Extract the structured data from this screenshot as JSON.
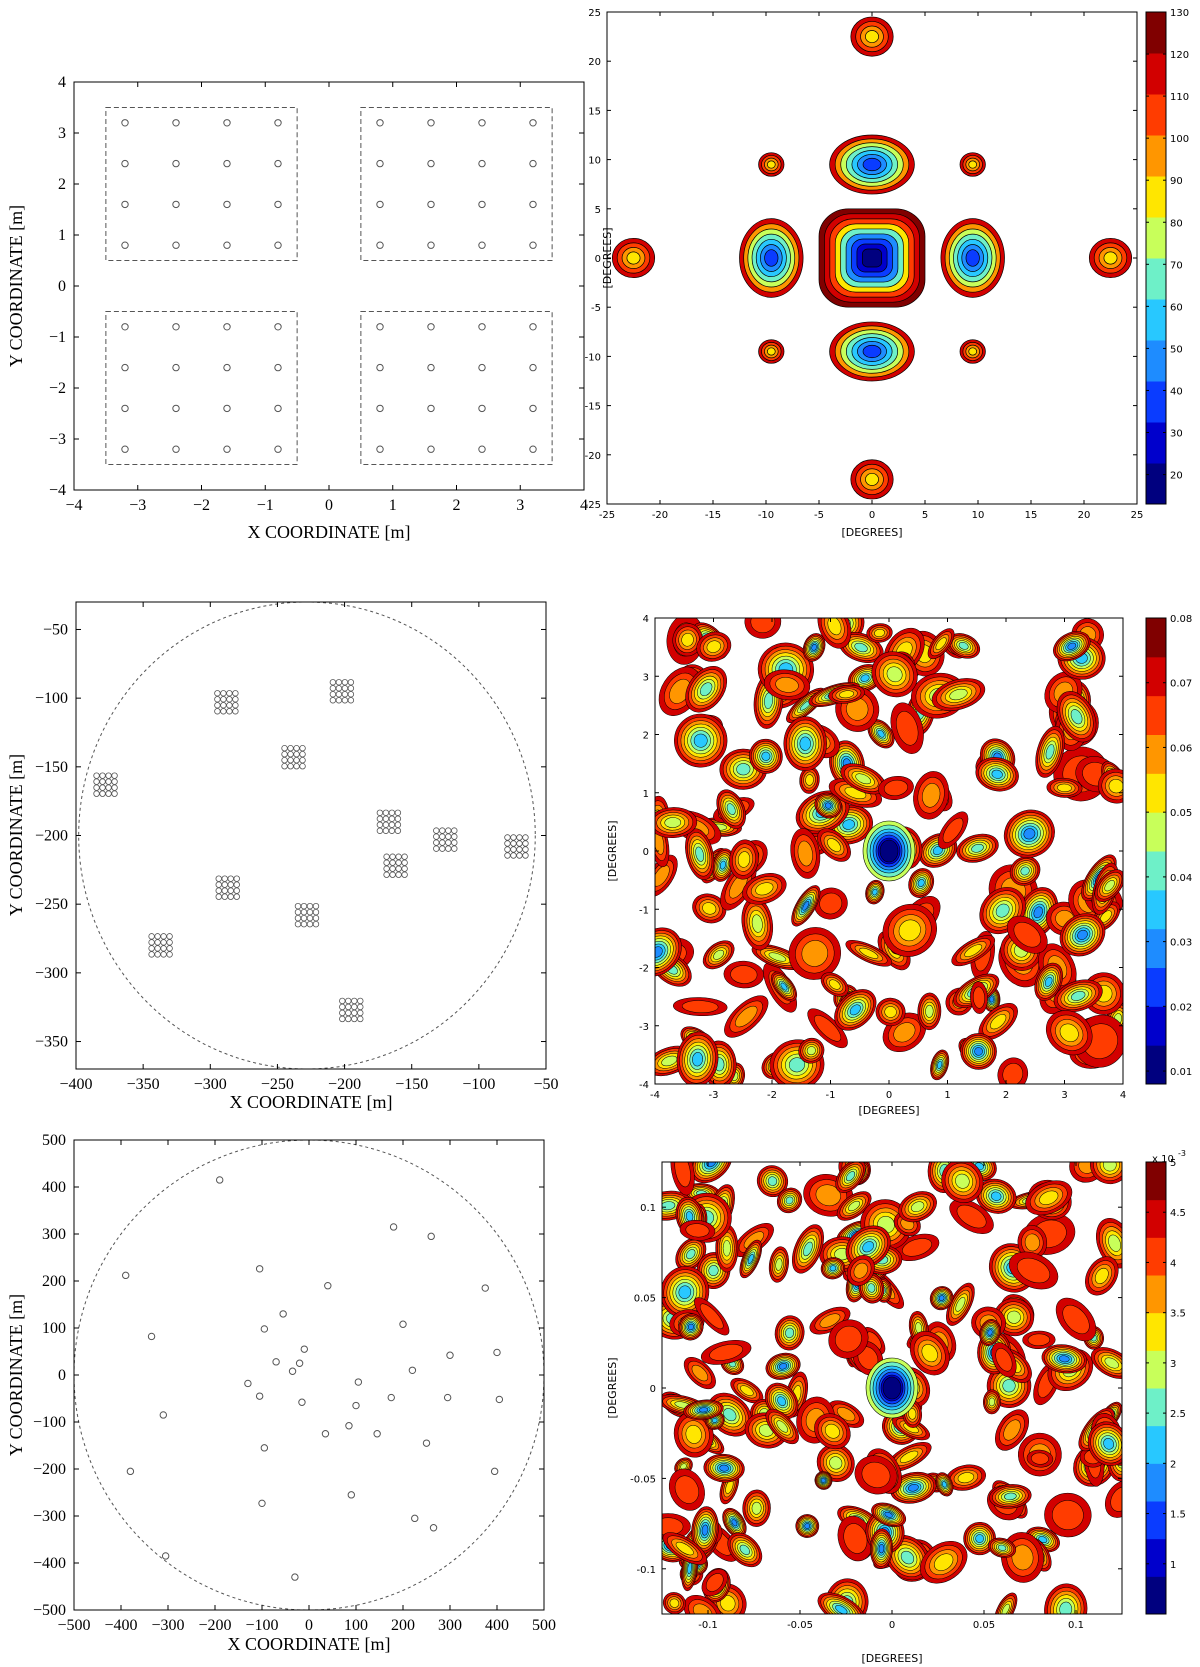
{
  "colors": {
    "colormap": [
      "#00007f",
      "#0000cc",
      "#0a3cff",
      "#1e8cff",
      "#28c8ff",
      "#6ef0c8",
      "#c8ff5a",
      "#ffe600",
      "#ff9600",
      "#ff3c00",
      "#d20000",
      "#800000"
    ],
    "axis": "#000000",
    "marker": "#555555",
    "dash": "#555555"
  },
  "chart_data": [
    {
      "type": "scatter",
      "panel": "layout-1",
      "xlabel": "X COORDINATE [m]",
      "ylabel": "Y COORDINATE [m]",
      "xlim": [
        -4,
        4
      ],
      "ylim": [
        -4,
        4
      ],
      "xticks": [
        -4,
        -3,
        -2,
        -1,
        0,
        1,
        2,
        3,
        4
      ],
      "yticks": [
        -4,
        -3,
        -2,
        -1,
        0,
        1,
        2,
        3,
        4
      ],
      "xtick_labels": [
        "−4",
        "−3",
        "−2",
        "−1",
        "0",
        "1",
        "2",
        "3",
        "4"
      ],
      "ytick_labels": [
        "−4",
        "−3",
        "−2",
        "−1",
        "0",
        "1",
        "2",
        "3",
        "4"
      ],
      "element_positions": [
        -3.2,
        -2.4,
        -1.6,
        -0.8,
        0.8,
        1.6,
        2.4,
        3.2
      ],
      "tiles": [
        {
          "x": [
            -3.5,
            -0.5
          ],
          "y": [
            0.5,
            3.5
          ]
        },
        {
          "x": [
            0.5,
            3.5
          ],
          "y": [
            0.5,
            3.5
          ]
        },
        {
          "x": [
            -3.5,
            -0.5
          ],
          "y": [
            -3.5,
            -0.5
          ]
        },
        {
          "x": [
            0.5,
            3.5
          ],
          "y": [
            -3.5,
            -0.5
          ]
        }
      ]
    },
    {
      "type": "heatmap",
      "panel": "pattern-1",
      "xlabel": "[DEGREES]",
      "ylabel": "[DEGREES]",
      "xlim": [
        -25,
        25
      ],
      "ylim": [
        -25,
        25
      ],
      "xticks": [
        -25,
        -20,
        -15,
        -10,
        -5,
        0,
        5,
        10,
        15,
        20,
        25
      ],
      "yticks": [
        -25,
        -20,
        -15,
        -10,
        -5,
        0,
        5,
        10,
        15,
        20,
        25
      ],
      "xtick_labels": [
        "-25",
        "-20",
        "-15",
        "-10",
        "-5",
        "0",
        "5",
        "10",
        "15",
        "20",
        "25"
      ],
      "ytick_labels": [
        "-25",
        "-20",
        "-15",
        "-10",
        "-5",
        "0",
        "5",
        "10",
        "15",
        "20",
        "25"
      ],
      "colorbar": {
        "min": 13,
        "max": 130,
        "ticks": [
          20,
          30,
          40,
          50,
          60,
          70,
          80,
          90,
          100,
          110,
          120,
          130
        ],
        "tick_labels": [
          "20",
          "30",
          "40",
          "50",
          "60",
          "70",
          "80",
          "90",
          "100",
          "110",
          "120",
          "130"
        ]
      },
      "lobes": [
        {
          "x": 0,
          "y": 0,
          "rx": 5,
          "ry": 5,
          "peak": 13
        },
        {
          "x": -9.5,
          "y": 0,
          "rx": 3,
          "ry": 4,
          "peak": 35
        },
        {
          "x": 9.5,
          "y": 0,
          "rx": 3,
          "ry": 4,
          "peak": 35
        },
        {
          "x": 0,
          "y": 9.5,
          "rx": 4,
          "ry": 3,
          "peak": 35
        },
        {
          "x": 0,
          "y": -9.5,
          "rx": 4,
          "ry": 3,
          "peak": 35
        },
        {
          "x": -9.5,
          "y": 9.5,
          "rx": 1.2,
          "ry": 1.2,
          "peak": 110
        },
        {
          "x": 9.5,
          "y": 9.5,
          "rx": 1.2,
          "ry": 1.2,
          "peak": 110
        },
        {
          "x": -9.5,
          "y": -9.5,
          "rx": 1.2,
          "ry": 1.2,
          "peak": 110
        },
        {
          "x": 9.5,
          "y": -9.5,
          "rx": 1.2,
          "ry": 1.2,
          "peak": 110
        },
        {
          "x": -22.5,
          "y": 0,
          "rx": 2,
          "ry": 2,
          "peak": 90
        },
        {
          "x": 22.5,
          "y": 0,
          "rx": 2,
          "ry": 2,
          "peak": 90
        },
        {
          "x": 0,
          "y": 22.5,
          "rx": 2,
          "ry": 2,
          "peak": 90
        },
        {
          "x": 0,
          "y": -22.5,
          "rx": 2,
          "ry": 2,
          "peak": 90
        }
      ]
    },
    {
      "type": "scatter",
      "panel": "layout-2",
      "xlabel": "X COORDINATE [m]",
      "ylabel": "Y COORDINATE [m]",
      "xlim": [
        -400,
        -50
      ],
      "ylim": [
        -370,
        -30
      ],
      "xticks": [
        -400,
        -350,
        -300,
        -250,
        -200,
        -150,
        -100,
        -50
      ],
      "yticks": [
        -350,
        -300,
        -250,
        -200,
        -150,
        -100,
        -50
      ],
      "xtick_labels": [
        "−400",
        "−350",
        "−300",
        "−250",
        "−200",
        "−150",
        "−100",
        "−50"
      ],
      "ytick_labels": [
        "−350",
        "−300",
        "−250",
        "−200",
        "−150",
        "−100",
        "−50"
      ],
      "station_circle": {
        "cx": -228,
        "cy": -200,
        "r": 170
      },
      "stations": [
        {
          "x": -202,
          "y": -95
        },
        {
          "x": -288,
          "y": -103
        },
        {
          "x": -238,
          "y": -143
        },
        {
          "x": -378,
          "y": -163
        },
        {
          "x": -167,
          "y": -190
        },
        {
          "x": -125,
          "y": -203
        },
        {
          "x": -162,
          "y": -222
        },
        {
          "x": -72,
          "y": -208
        },
        {
          "x": -287,
          "y": -238
        },
        {
          "x": -228,
          "y": -258
        },
        {
          "x": -337,
          "y": -280
        },
        {
          "x": -195,
          "y": -327
        }
      ]
    },
    {
      "type": "heatmap",
      "panel": "pattern-2",
      "xlabel": "[DEGREES]",
      "ylabel": "[DEGREES]",
      "xlim": [
        -4,
        4
      ],
      "ylim": [
        -4,
        4
      ],
      "xticks": [
        -4,
        -3,
        -2,
        -1,
        0,
        1,
        2,
        3,
        4
      ],
      "yticks": [
        -4,
        -3,
        -2,
        -1,
        0,
        1,
        2,
        3,
        4
      ],
      "xtick_labels": [
        "-4",
        "-3",
        "-2",
        "-1",
        "0",
        "1",
        "2",
        "3",
        "4"
      ],
      "ytick_labels": [
        "-4",
        "-3",
        "-2",
        "-1",
        "0",
        "1",
        "2",
        "3",
        "4"
      ],
      "colorbar": {
        "min": 0.008,
        "max": 0.08,
        "ticks": [
          0.01,
          0.02,
          0.03,
          0.04,
          0.05,
          0.06,
          0.07,
          0.08
        ],
        "tick_labels": [
          "0.01",
          "0.02",
          "0.03",
          "0.04",
          "0.05",
          "0.06",
          "0.07",
          "0.08"
        ]
      },
      "main_beam": {
        "x": 0,
        "y": 0
      }
    },
    {
      "type": "scatter",
      "panel": "layout-3",
      "xlabel": "X COORDINATE [m]",
      "ylabel": "Y COORDINATE [m]",
      "xlim": [
        -500,
        500
      ],
      "ylim": [
        -500,
        500
      ],
      "xticks": [
        -500,
        -400,
        -300,
        -200,
        -100,
        0,
        100,
        200,
        300,
        400,
        500
      ],
      "yticks": [
        -500,
        -400,
        -300,
        -200,
        -100,
        0,
        100,
        200,
        300,
        400,
        500
      ],
      "xtick_labels": [
        "−500",
        "−400",
        "−300",
        "−200",
        "−100",
        "0",
        "100",
        "200",
        "300",
        "400",
        "500"
      ],
      "ytick_labels": [
        "−500",
        "−400",
        "−300",
        "−200",
        "−100",
        "0",
        "100",
        "200",
        "300",
        "400",
        "500"
      ],
      "station_circle": {
        "cx": 0,
        "cy": 0,
        "r": 500
      },
      "stations": [
        {
          "x": -190,
          "y": 415
        },
        {
          "x": -390,
          "y": 212
        },
        {
          "x": -335,
          "y": 82
        },
        {
          "x": -310,
          "y": -85
        },
        {
          "x": -380,
          "y": -205
        },
        {
          "x": -305,
          "y": -385
        },
        {
          "x": -105,
          "y": 226
        },
        {
          "x": -95,
          "y": 98
        },
        {
          "x": -55,
          "y": 130
        },
        {
          "x": -70,
          "y": 28
        },
        {
          "x": -130,
          "y": -18
        },
        {
          "x": -105,
          "y": -45
        },
        {
          "x": -95,
          "y": -155
        },
        {
          "x": -100,
          "y": -273
        },
        {
          "x": -30,
          "y": -430
        },
        {
          "x": -35,
          "y": 8
        },
        {
          "x": -20,
          "y": 25
        },
        {
          "x": -10,
          "y": 55
        },
        {
          "x": -15,
          "y": -58
        },
        {
          "x": 40,
          "y": 190
        },
        {
          "x": 35,
          "y": -125
        },
        {
          "x": 85,
          "y": -108
        },
        {
          "x": 100,
          "y": -65
        },
        {
          "x": 105,
          "y": -15
        },
        {
          "x": 90,
          "y": -255
        },
        {
          "x": 145,
          "y": -125
        },
        {
          "x": 175,
          "y": -48
        },
        {
          "x": 180,
          "y": 315
        },
        {
          "x": 200,
          "y": 108
        },
        {
          "x": 220,
          "y": 10
        },
        {
          "x": 260,
          "y": 295
        },
        {
          "x": 250,
          "y": -145
        },
        {
          "x": 225,
          "y": -305
        },
        {
          "x": 265,
          "y": -325
        },
        {
          "x": 295,
          "y": -48
        },
        {
          "x": 300,
          "y": 42
        },
        {
          "x": 375,
          "y": 185
        },
        {
          "x": 400,
          "y": 48
        },
        {
          "x": 405,
          "y": -52
        },
        {
          "x": 395,
          "y": -205
        }
      ]
    },
    {
      "type": "heatmap",
      "panel": "pattern-3",
      "xlabel": "[DEGREES]",
      "ylabel": "[DEGREES]",
      "xlim": [
        -0.125,
        0.125
      ],
      "ylim": [
        -0.125,
        0.125
      ],
      "xticks": [
        -0.1,
        -0.05,
        0,
        0.05,
        0.1
      ],
      "yticks": [
        -0.1,
        -0.05,
        0,
        0.05,
        0.1
      ],
      "xtick_labels": [
        "-0.1",
        "-0.05",
        "0",
        "0.05",
        "0.1"
      ],
      "ytick_labels": [
        "-0.1",
        "-0.05",
        "0",
        "0.05",
        "0.1"
      ],
      "colorbar": {
        "min": 0.0005,
        "max": 0.005,
        "ticks": [
          0.001,
          0.0015,
          0.002,
          0.0025,
          0.003,
          0.0035,
          0.004,
          0.0045,
          0.005
        ],
        "tick_labels": [
          "1",
          "1.5",
          "2",
          "2.5",
          "3",
          "3.5",
          "4",
          "4.5",
          "5"
        ],
        "multiplier": "x 10",
        "multiplier_exp": "-3"
      },
      "main_beam": {
        "x": 0,
        "y": 0
      }
    }
  ]
}
